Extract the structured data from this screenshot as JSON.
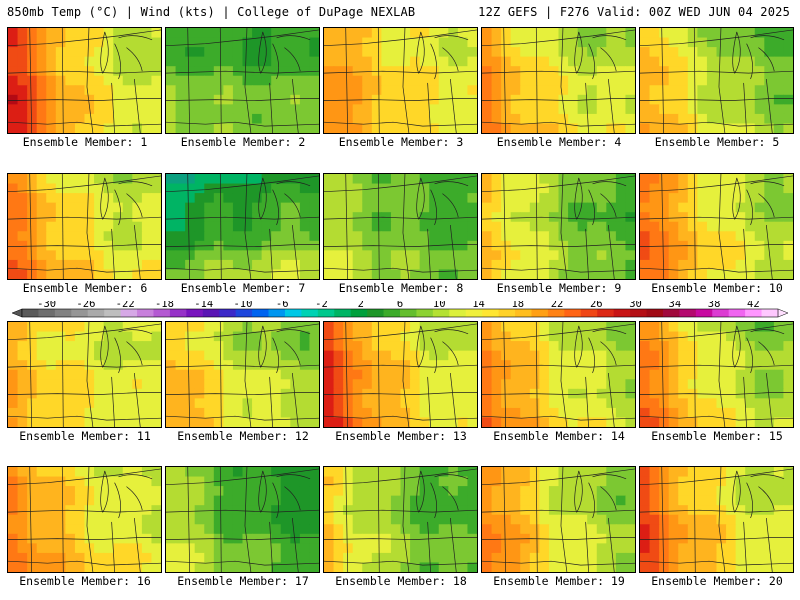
{
  "header": {
    "left": "850mb Temp (°C) | Wind (kts) | College of DuPage NEXLAB",
    "right": "12Z GEFS | F276 Valid: 00Z WED JUN 04 2025"
  },
  "members": [
    {
      "label": "Ensemble Member: 1",
      "base": 16,
      "west": 12,
      "east": -1,
      "north": -3
    },
    {
      "label": "Ensemble Member: 2",
      "base": 11,
      "west": 2,
      "east": 1,
      "north": -5
    },
    {
      "label": "Ensemble Member: 3",
      "base": 17,
      "west": 5,
      "east": -1,
      "north": -2
    },
    {
      "label": "Ensemble Member: 4",
      "base": 16,
      "west": 7,
      "east": -1,
      "north": -4
    },
    {
      "label": "Ensemble Member: 5",
      "base": 14,
      "west": 7,
      "east": -2,
      "north": -3
    },
    {
      "label": "Ensemble Member: 6",
      "base": 16,
      "west": 8,
      "east": -1,
      "north": -3
    },
    {
      "label": "Ensemble Member: 7",
      "base": 11,
      "west": -1,
      "east": 3,
      "north": -8
    },
    {
      "label": "Ensemble Member: 8",
      "base": 12,
      "west": 2,
      "east": -2,
      "north": -2
    },
    {
      "label": "Ensemble Member: 9",
      "base": 14,
      "west": 5,
      "east": -4,
      "north": -2
    },
    {
      "label": "Ensemble Member: 10",
      "base": 16,
      "west": 9,
      "east": -2,
      "north": -3
    },
    {
      "label": "Ensemble Member: 11",
      "base": 16,
      "west": 4,
      "east": -1,
      "north": -2
    },
    {
      "label": "Ensemble Member: 12",
      "base": 15,
      "west": 6,
      "east": -1,
      "north": -4
    },
    {
      "label": "Ensemble Member: 13",
      "base": 18,
      "west": 9,
      "east": -3,
      "north": -3
    },
    {
      "label": "Ensemble Member: 14",
      "base": 16,
      "west": 8,
      "east": -2,
      "north": -3
    },
    {
      "label": "Ensemble Member: 15",
      "base": 16,
      "west": 8,
      "east": -3,
      "north": -3
    },
    {
      "label": "Ensemble Member: 16",
      "base": 17,
      "west": 6,
      "east": -2,
      "north": -2
    },
    {
      "label": "Ensemble Member: 17",
      "base": 10,
      "west": 5,
      "east": -1,
      "north": -3
    },
    {
      "label": "Ensemble Member: 18",
      "base": 12,
      "west": 6,
      "east": -2,
      "north": -2
    },
    {
      "label": "Ensemble Member: 19",
      "base": 16,
      "west": 8,
      "east": -3,
      "north": -3
    },
    {
      "label": "Ensemble Member: 20",
      "base": 17,
      "west": 9,
      "east": -2,
      "north": -3
    }
  ],
  "colorbar": {
    "tick_labels": [
      "-30",
      "-26",
      "-22",
      "-18",
      "-14",
      "-10",
      "-6",
      "-2",
      "2",
      "6",
      "10",
      "14",
      "18",
      "22",
      "26",
      "30",
      "34",
      "38",
      "42"
    ],
    "colors": [
      "#5a5a5a",
      "#6e6e6e",
      "#828282",
      "#969696",
      "#aaaaaa",
      "#bebebe",
      "#d6a8e6",
      "#c880dc",
      "#b45ad2",
      "#9632c8",
      "#7814be",
      "#5a14b4",
      "#3c28c8",
      "#1e46dc",
      "#0064f0",
      "#0096f0",
      "#00c8e6",
      "#00d2b4",
      "#00c88c",
      "#00b464",
      "#00a03c",
      "#1e9628",
      "#3cab2a",
      "#64be2e",
      "#8cd232",
      "#b4e132",
      "#dcf03c",
      "#f0f03c",
      "#ffe632",
      "#ffd228",
      "#ffbe1e",
      "#ffa014",
      "#ff8214",
      "#ff6414",
      "#f04614",
      "#dc2814",
      "#c81414",
      "#b40f14",
      "#a00a14",
      "#a00a3c",
      "#b40a6e",
      "#c80aa0",
      "#dc3cd2",
      "#f064f0",
      "#ff96ff",
      "#ffc8ff"
    ]
  }
}
